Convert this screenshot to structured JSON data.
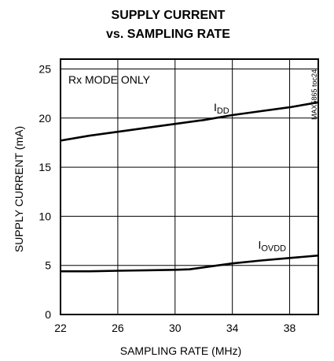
{
  "chart_data": {
    "type": "line",
    "title_line1": "SUPPLY CURRENT",
    "title_line2": "vs. SAMPLING RATE",
    "xlabel": "SAMPLING RATE (MHz)",
    "ylabel": "SUPPLY CURRENT (mA)",
    "xlim": [
      22,
      40
    ],
    "ylim": [
      0,
      26
    ],
    "xticks": [
      22,
      26,
      30,
      34,
      38
    ],
    "yticks": [
      0,
      5,
      10,
      15,
      20,
      25
    ],
    "x_gridlines": [
      22,
      26,
      30,
      34,
      38,
      40
    ],
    "y_gridlines": [
      0,
      5,
      10,
      15,
      20,
      25
    ],
    "grid": true,
    "annotation": "Rx MODE ONLY",
    "side_label": "MAX5865 toc24",
    "series": [
      {
        "name": "IDD",
        "label_main": "I",
        "label_sub": "DD",
        "label_at": [
          32.7,
          20.7
        ],
        "x": [
          22,
          24,
          26,
          28,
          30,
          32,
          34,
          36,
          38,
          40
        ],
        "y": [
          17.7,
          18.2,
          18.6,
          19.0,
          19.4,
          19.8,
          20.3,
          20.7,
          21.1,
          21.6
        ]
      },
      {
        "name": "IOVDD",
        "label_main": "I",
        "label_sub": "OVDD",
        "label_at": [
          35.8,
          6.7
        ],
        "x": [
          22,
          24,
          26,
          28,
          30,
          31,
          32,
          33,
          34,
          36,
          38,
          40
        ],
        "y": [
          4.4,
          4.4,
          4.45,
          4.5,
          4.55,
          4.6,
          4.8,
          5.0,
          5.2,
          5.5,
          5.75,
          6.0
        ]
      }
    ]
  }
}
